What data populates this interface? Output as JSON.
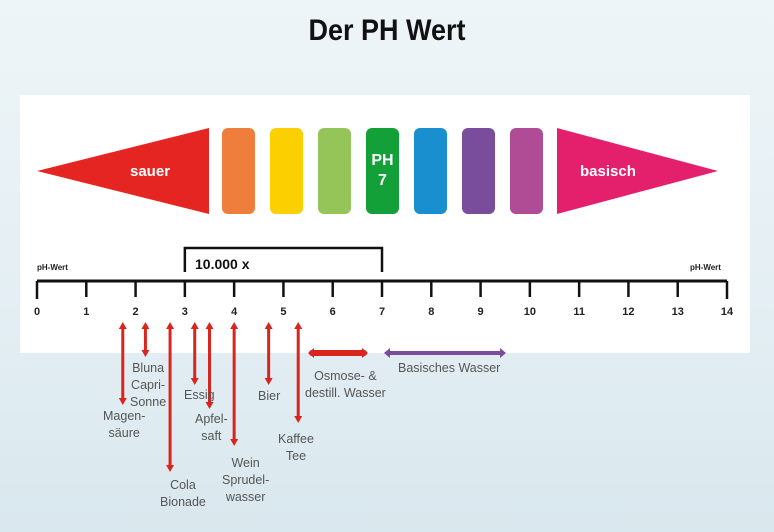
{
  "title": "Der PH Wert",
  "scale": {
    "left_label": "sauer",
    "right_label": "basisch",
    "center_label_line1": "PH",
    "center_label_line2": "7",
    "colors": [
      "#e52521",
      "#ef7d3b",
      "#fccf00",
      "#95c459",
      "#13a038",
      "#1a8fd0",
      "#7a4c9c",
      "#b04c96",
      "#e4206d"
    ]
  },
  "axis": {
    "label_left": "pH-Wert",
    "label_right": "pH-Wert",
    "ticks": [
      "0",
      "1",
      "2",
      "3",
      "4",
      "5",
      "6",
      "7",
      "8",
      "9",
      "10",
      "11",
      "12",
      "13",
      "14"
    ],
    "bracket_label": "10.000 x",
    "bracket_range": [
      3,
      7
    ]
  },
  "items": [
    {
      "lines": [
        "Magen-",
        "säure"
      ],
      "ph": 1.7
    },
    {
      "lines": [
        "Bluna",
        "Capri-",
        "Sonne"
      ],
      "ph": 2.2
    },
    {
      "lines": [
        "Cola",
        "Bionade"
      ],
      "ph": 2.7
    },
    {
      "lines": [
        "Essig"
      ],
      "ph": 3.2
    },
    {
      "lines": [
        "Apfel-",
        "saft"
      ],
      "ph": 3.5
    },
    {
      "lines": [
        "Wein",
        "Sprudel-",
        "wasser"
      ],
      "ph": 4.0
    },
    {
      "lines": [
        "Bier"
      ],
      "ph": 4.7
    },
    {
      "lines": [
        "Kaffee",
        "Tee"
      ],
      "ph": 5.3
    },
    {
      "lines": [
        "Osmose- &",
        "destill. Wasser"
      ],
      "ph_range": [
        5.5,
        6.7
      ]
    },
    {
      "lines": [
        "Basisches Wasser"
      ],
      "ph_range": [
        7,
        9.5
      ]
    }
  ]
}
